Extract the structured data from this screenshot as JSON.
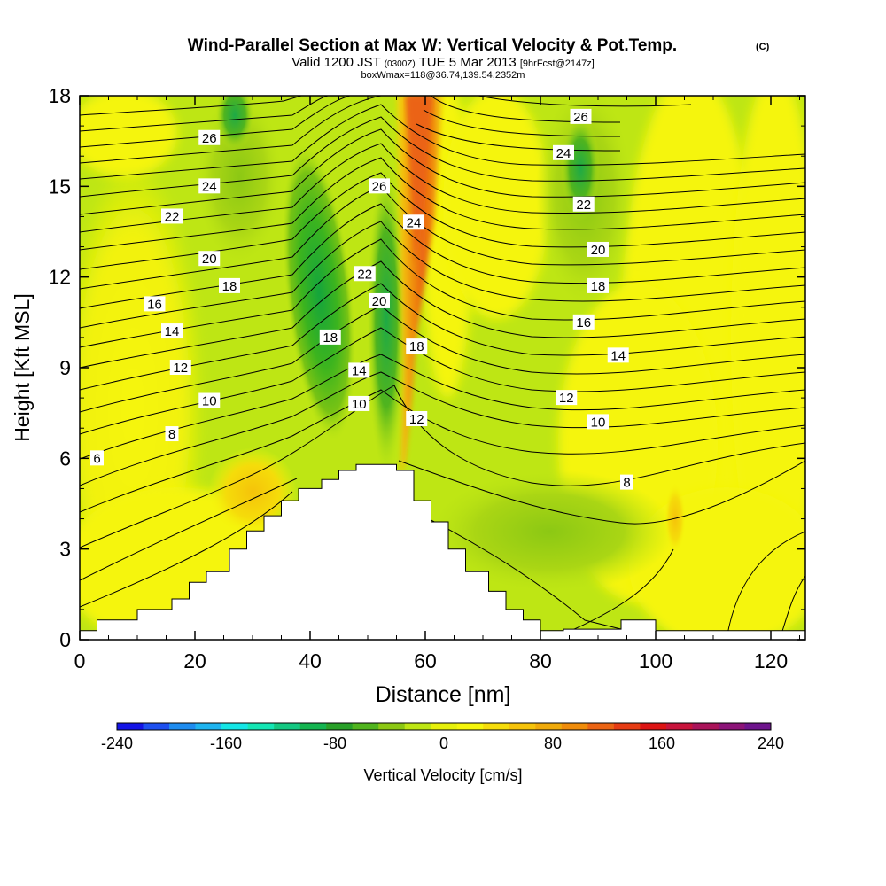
{
  "chart_data": {
    "type": "heatmap",
    "title": "Wind-Parallel Section at Max W: Vertical Velocity & Pot.Temp.",
    "title_mark": "(C)",
    "subtitle": {
      "main1": "Valid 1200 JST",
      "small1": "(0300Z)",
      "main2": "TUE 5 Mar 2013",
      "small2": "[9hrFcst@2147z]"
    },
    "subtitle2": "boxWmax=118@36.74,139.54,2352m",
    "xlabel": "Distance [nm]",
    "ylabel": "Height [Kft MSL]",
    "xlim": [
      0,
      126
    ],
    "ylim": [
      0,
      18
    ],
    "xticks": [
      0,
      20,
      40,
      60,
      80,
      100,
      120
    ],
    "yticks": [
      0,
      3,
      6,
      9,
      12,
      15,
      18
    ],
    "colorbar": {
      "label": "Vertical Velocity [cm/s]",
      "range": [
        -240,
        240
      ],
      "tick_values": [
        -240,
        -160,
        -80,
        0,
        80,
        160,
        240
      ],
      "colors": [
        "#1414e6",
        "#1e50f0",
        "#1e8cf0",
        "#1eb4f0",
        "#14e6e6",
        "#14e6b4",
        "#14c882",
        "#14b450",
        "#28a028",
        "#50b41e",
        "#8cc814",
        "#bee614",
        "#e6f00a",
        "#f5f50a",
        "#f5dc0a",
        "#f5c30a",
        "#f0aa0a",
        "#f08c0a",
        "#eb6414",
        "#e63c14",
        "#dc1414",
        "#c8143c",
        "#aa145a",
        "#8c1478",
        "#6e148c"
      ]
    },
    "wind_velocity_field": [
      {
        "x": 44,
        "y": 11,
        "value": -95
      },
      {
        "x": 53,
        "y": 12,
        "value": -80
      },
      {
        "x": 25,
        "y": 17,
        "value": -70
      },
      {
        "x": 88,
        "y": 14,
        "value": -55
      },
      {
        "x": 59,
        "y": 16,
        "value": 180
      },
      {
        "x": 30,
        "y": 4.8,
        "value": 45
      },
      {
        "x": 104,
        "y": 4,
        "value": 50
      }
    ],
    "contour_labels": [
      {
        "text": "26",
        "x": 22.5,
        "y": 16.6
      },
      {
        "text": "24",
        "x": 22.5,
        "y": 15.0
      },
      {
        "text": "22",
        "x": 16.0,
        "y": 14.0
      },
      {
        "text": "20",
        "x": 22.5,
        "y": 12.6
      },
      {
        "text": "18",
        "x": 26.0,
        "y": 11.7
      },
      {
        "text": "16",
        "x": 13.0,
        "y": 11.1
      },
      {
        "text": "14",
        "x": 16.0,
        "y": 10.2
      },
      {
        "text": "12",
        "x": 17.5,
        "y": 9.0
      },
      {
        "text": "10",
        "x": 22.5,
        "y": 7.9
      },
      {
        "text": "8",
        "x": 16.0,
        "y": 6.8
      },
      {
        "text": "6",
        "x": 3.0,
        "y": 6.0
      },
      {
        "text": "26",
        "x": 52.0,
        "y": 15.0
      },
      {
        "text": "24",
        "x": 58.0,
        "y": 13.8
      },
      {
        "text": "22",
        "x": 49.5,
        "y": 12.1
      },
      {
        "text": "20",
        "x": 52.0,
        "y": 11.2
      },
      {
        "text": "18",
        "x": 43.5,
        "y": 10.0
      },
      {
        "text": "18",
        "x": 58.5,
        "y": 9.7
      },
      {
        "text": "14",
        "x": 48.5,
        "y": 8.9
      },
      {
        "text": "10",
        "x": 48.5,
        "y": 7.8
      },
      {
        "text": "12",
        "x": 58.5,
        "y": 7.3
      },
      {
        "text": "26",
        "x": 87.0,
        "y": 17.3
      },
      {
        "text": "24",
        "x": 84.0,
        "y": 16.1
      },
      {
        "text": "22",
        "x": 87.5,
        "y": 14.4
      },
      {
        "text": "20",
        "x": 90.0,
        "y": 12.9
      },
      {
        "text": "18",
        "x": 90.0,
        "y": 11.7
      },
      {
        "text": "16",
        "x": 87.5,
        "y": 10.5
      },
      {
        "text": "14",
        "x": 93.5,
        "y": 9.4
      },
      {
        "text": "12",
        "x": 84.5,
        "y": 8.0
      },
      {
        "text": "10",
        "x": 90.0,
        "y": 7.2
      },
      {
        "text": "8",
        "x": 95.0,
        "y": 5.2
      }
    ],
    "terrain_profile": [
      [
        0,
        0.3
      ],
      [
        3,
        0.3
      ],
      [
        3,
        0.65
      ],
      [
        10,
        0.65
      ],
      [
        10,
        1.0
      ],
      [
        16,
        1.0
      ],
      [
        16,
        1.35
      ],
      [
        19,
        1.35
      ],
      [
        19,
        1.9
      ],
      [
        22,
        1.9
      ],
      [
        22,
        2.25
      ],
      [
        26,
        2.25
      ],
      [
        26,
        3.0
      ],
      [
        29,
        3.0
      ],
      [
        29,
        3.6
      ],
      [
        32,
        3.6
      ],
      [
        32,
        4.1
      ],
      [
        35,
        4.1
      ],
      [
        35,
        4.6
      ],
      [
        38,
        4.6
      ],
      [
        38,
        5.0
      ],
      [
        42,
        5.0
      ],
      [
        42,
        5.3
      ],
      [
        45,
        5.3
      ],
      [
        45,
        5.6
      ],
      [
        48,
        5.6
      ],
      [
        48,
        5.8
      ],
      [
        55,
        5.8
      ],
      [
        55,
        5.6
      ],
      [
        58,
        5.6
      ],
      [
        58,
        4.6
      ],
      [
        61,
        4.6
      ],
      [
        61,
        3.9
      ],
      [
        64,
        3.9
      ],
      [
        64,
        3.0
      ],
      [
        67,
        3.0
      ],
      [
        67,
        2.25
      ],
      [
        71,
        2.25
      ],
      [
        71,
        1.6
      ],
      [
        74,
        1.6
      ],
      [
        74,
        1.0
      ],
      [
        77,
        1.0
      ],
      [
        77,
        0.65
      ],
      [
        80,
        0.65
      ],
      [
        80,
        0.3
      ],
      [
        84,
        0.3
      ],
      [
        84,
        0.35
      ],
      [
        94,
        0.35
      ],
      [
        94,
        0.65
      ],
      [
        100,
        0.65
      ],
      [
        100,
        0.3
      ],
      [
        126,
        0.3
      ]
    ]
  }
}
